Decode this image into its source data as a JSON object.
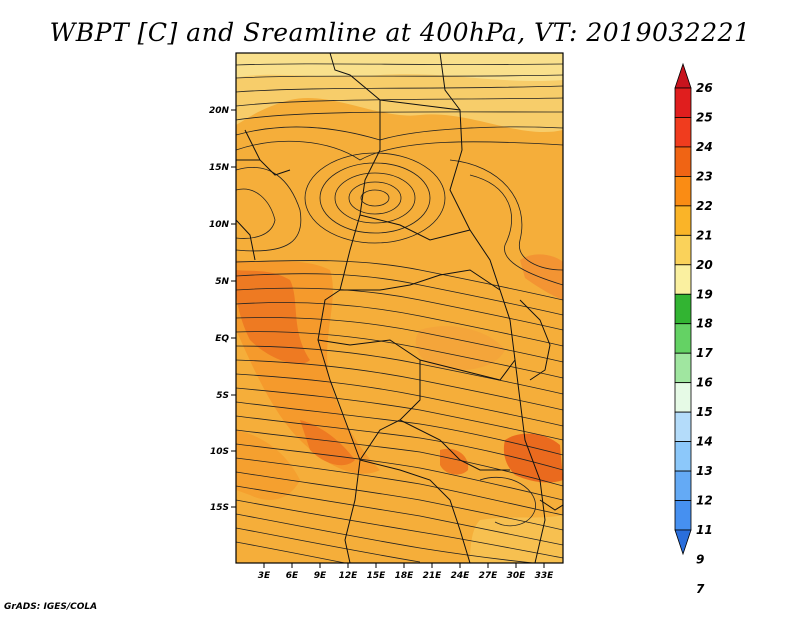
{
  "title": "WBPT [C] and Sreamline at 400hPa, VT: 2019032221",
  "footer": "GrADS: IGES/COLA",
  "map": {
    "lat_labels": [
      "20N",
      "15N",
      "10N",
      "5N",
      "EQ",
      "5S",
      "10S",
      "15S"
    ],
    "lon_labels": [
      "3E",
      "6E",
      "9E",
      "12E",
      "15E",
      "18E",
      "21E",
      "24E",
      "27E",
      "30E",
      "33E"
    ]
  },
  "colorbar": {
    "levels": [
      "26",
      "25",
      "24",
      "23",
      "22",
      "21",
      "20",
      "19",
      "18",
      "17",
      "16",
      "15",
      "14",
      "13",
      "12",
      "11",
      "9",
      "7"
    ],
    "colors": [
      "#c8141e",
      "#e01e1e",
      "#f03c1e",
      "#f06414",
      "#fa8c14",
      "#fab428",
      "#fad25a",
      "#faf0a0",
      "#32b432",
      "#64d264",
      "#a0e6a0",
      "#e6fae6",
      "#b4dcfa",
      "#8cc8fa",
      "#64aaf5",
      "#4690f0",
      "#2a6edc"
    ],
    "colors_note": ""
  }
}
